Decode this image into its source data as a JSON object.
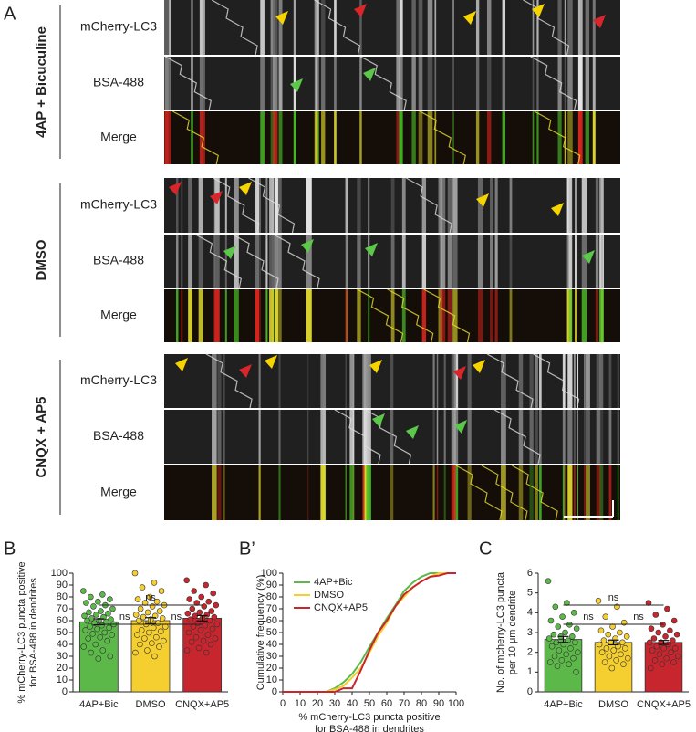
{
  "panel_labels": [
    "A",
    "B",
    "B’",
    "C"
  ],
  "kymograph": {
    "groups": [
      {
        "name": "4AP + Bicuculine",
        "color": "#5cb848",
        "rows": [
          "mCherry-LC3",
          "BSA-488",
          "Merge"
        ]
      },
      {
        "name": "DMSO",
        "color": "#f2c82e",
        "rows": [
          "mCherry-LC3",
          "BSA-488",
          "Merge"
        ]
      },
      {
        "name": "CNQX + AP5",
        "color": "#c8262e",
        "rows": [
          "mCherry-LC3",
          "BSA-488",
          "Merge"
        ]
      }
    ]
  },
  "chart_data": [
    {
      "type": "bar",
      "ylabel": [
        "% mCherry-LC3 puncta positive",
        "for BSA-488 in dendrites"
      ],
      "categories": [
        "4AP+Bic",
        "DMSO",
        "CNQX+AP5"
      ],
      "colors": [
        "#5cb848",
        "#f5cf2f",
        "#c8262e"
      ],
      "values": [
        59,
        60,
        62
      ],
      "errors": [
        2.5,
        2.5,
        2.3
      ],
      "points": [
        [
          85,
          82,
          80,
          78,
          76,
          75,
          73,
          72,
          70,
          68,
          67,
          66,
          65,
          64,
          63,
          62,
          61,
          60,
          60,
          59,
          58,
          57,
          56,
          55,
          54,
          53,
          52,
          50,
          49,
          48,
          46,
          45,
          43,
          40,
          38,
          35,
          33,
          30,
          28
        ],
        [
          100,
          92,
          88,
          85,
          80,
          78,
          76,
          75,
          73,
          72,
          70,
          68,
          67,
          65,
          64,
          63,
          62,
          61,
          60,
          58,
          57,
          55,
          54,
          52,
          51,
          50,
          48,
          46,
          45,
          43,
          41,
          40,
          38,
          35,
          33,
          30
        ],
        [
          94,
          90,
          85,
          83,
          80,
          78,
          76,
          75,
          73,
          72,
          70,
          68,
          67,
          66,
          65,
          64,
          63,
          62,
          61,
          60,
          58,
          57,
          56,
          55,
          53,
          52,
          50,
          48,
          46,
          45,
          43,
          42,
          40,
          37,
          35,
          33
        ]
      ],
      "annotations": [
        "ns",
        "ns",
        "ns"
      ],
      "ylim": [
        0,
        100
      ],
      "yticks": [
        0,
        10,
        20,
        30,
        40,
        50,
        60,
        70,
        80,
        90,
        100
      ]
    },
    {
      "type": "line",
      "ylabel": "Cumulative frequency (%)",
      "xlabel": [
        "% mCherry-LC3 puncta positive",
        "for BSA-488 in dendrites"
      ],
      "x": [
        0,
        10,
        20,
        25,
        30,
        35,
        40,
        45,
        50,
        55,
        60,
        65,
        70,
        75,
        80,
        85,
        90,
        95,
        100
      ],
      "series": [
        {
          "name": "4AP+Bic",
          "color": "#5cb848",
          "values": [
            0,
            0,
            0,
            0,
            3,
            8,
            15,
            25,
            38,
            50,
            62,
            73,
            85,
            92,
            97,
            100,
            100,
            100,
            100
          ]
        },
        {
          "name": "DMSO",
          "color": "#f5cf2f",
          "values": [
            0,
            0,
            0,
            0,
            2,
            5,
            12,
            20,
            33,
            47,
            58,
            72,
            80,
            88,
            93,
            97,
            100,
            100,
            100
          ]
        },
        {
          "name": "CNQX+AP5",
          "color": "#c8262e",
          "values": [
            0,
            0,
            0,
            0,
            0,
            3,
            3,
            18,
            35,
            50,
            60,
            72,
            82,
            88,
            93,
            97,
            98,
            100,
            100
          ]
        }
      ],
      "xlim": [
        0,
        100
      ],
      "xticks": [
        0,
        10,
        20,
        30,
        40,
        50,
        60,
        70,
        80,
        90,
        100
      ],
      "ylim": [
        0,
        100
      ],
      "yticks": [
        0,
        10,
        20,
        30,
        40,
        50,
        60,
        70,
        80,
        90,
        100
      ]
    },
    {
      "type": "bar",
      "ylabel": [
        "No. of mcherry-LC3 puncta",
        "per 10 μm dendrite"
      ],
      "categories": [
        "4AP+Bic",
        "DMSO",
        "CNQX+AP5"
      ],
      "colors": [
        "#5cb848",
        "#f5cf2f",
        "#c8262e"
      ],
      "values": [
        2.65,
        2.5,
        2.5
      ],
      "errors": [
        0.15,
        0.12,
        0.1
      ],
      "points": [
        [
          5.6,
          4.5,
          4.3,
          4.0,
          3.8,
          3.6,
          3.4,
          3.3,
          3.2,
          3.0,
          2.9,
          2.8,
          2.8,
          2.7,
          2.6,
          2.5,
          2.5,
          2.4,
          2.3,
          2.2,
          2.1,
          2.0,
          1.9,
          1.8,
          1.7,
          1.6,
          1.5,
          1.4,
          1.3,
          1.0
        ],
        [
          4.6,
          4.3,
          3.8,
          3.5,
          3.3,
          3.1,
          3.0,
          2.9,
          2.8,
          2.7,
          2.6,
          2.5,
          2.5,
          2.4,
          2.3,
          2.2,
          2.2,
          2.1,
          2.0,
          1.9,
          1.8,
          1.7,
          1.6,
          1.5,
          1.4,
          1.2
        ],
        [
          4.5,
          4.2,
          3.9,
          3.6,
          3.4,
          3.2,
          3.1,
          3.0,
          2.9,
          2.8,
          2.7,
          2.6,
          2.5,
          2.5,
          2.4,
          2.3,
          2.2,
          2.2,
          2.1,
          2.0,
          1.9,
          1.8,
          1.7,
          1.6,
          1.5,
          1.4,
          1.2
        ]
      ],
      "annotations": [
        "ns",
        "ns",
        "ns"
      ],
      "ylim": [
        0,
        6
      ],
      "yticks": [
        0,
        1,
        2,
        3,
        4,
        5,
        6
      ]
    }
  ]
}
